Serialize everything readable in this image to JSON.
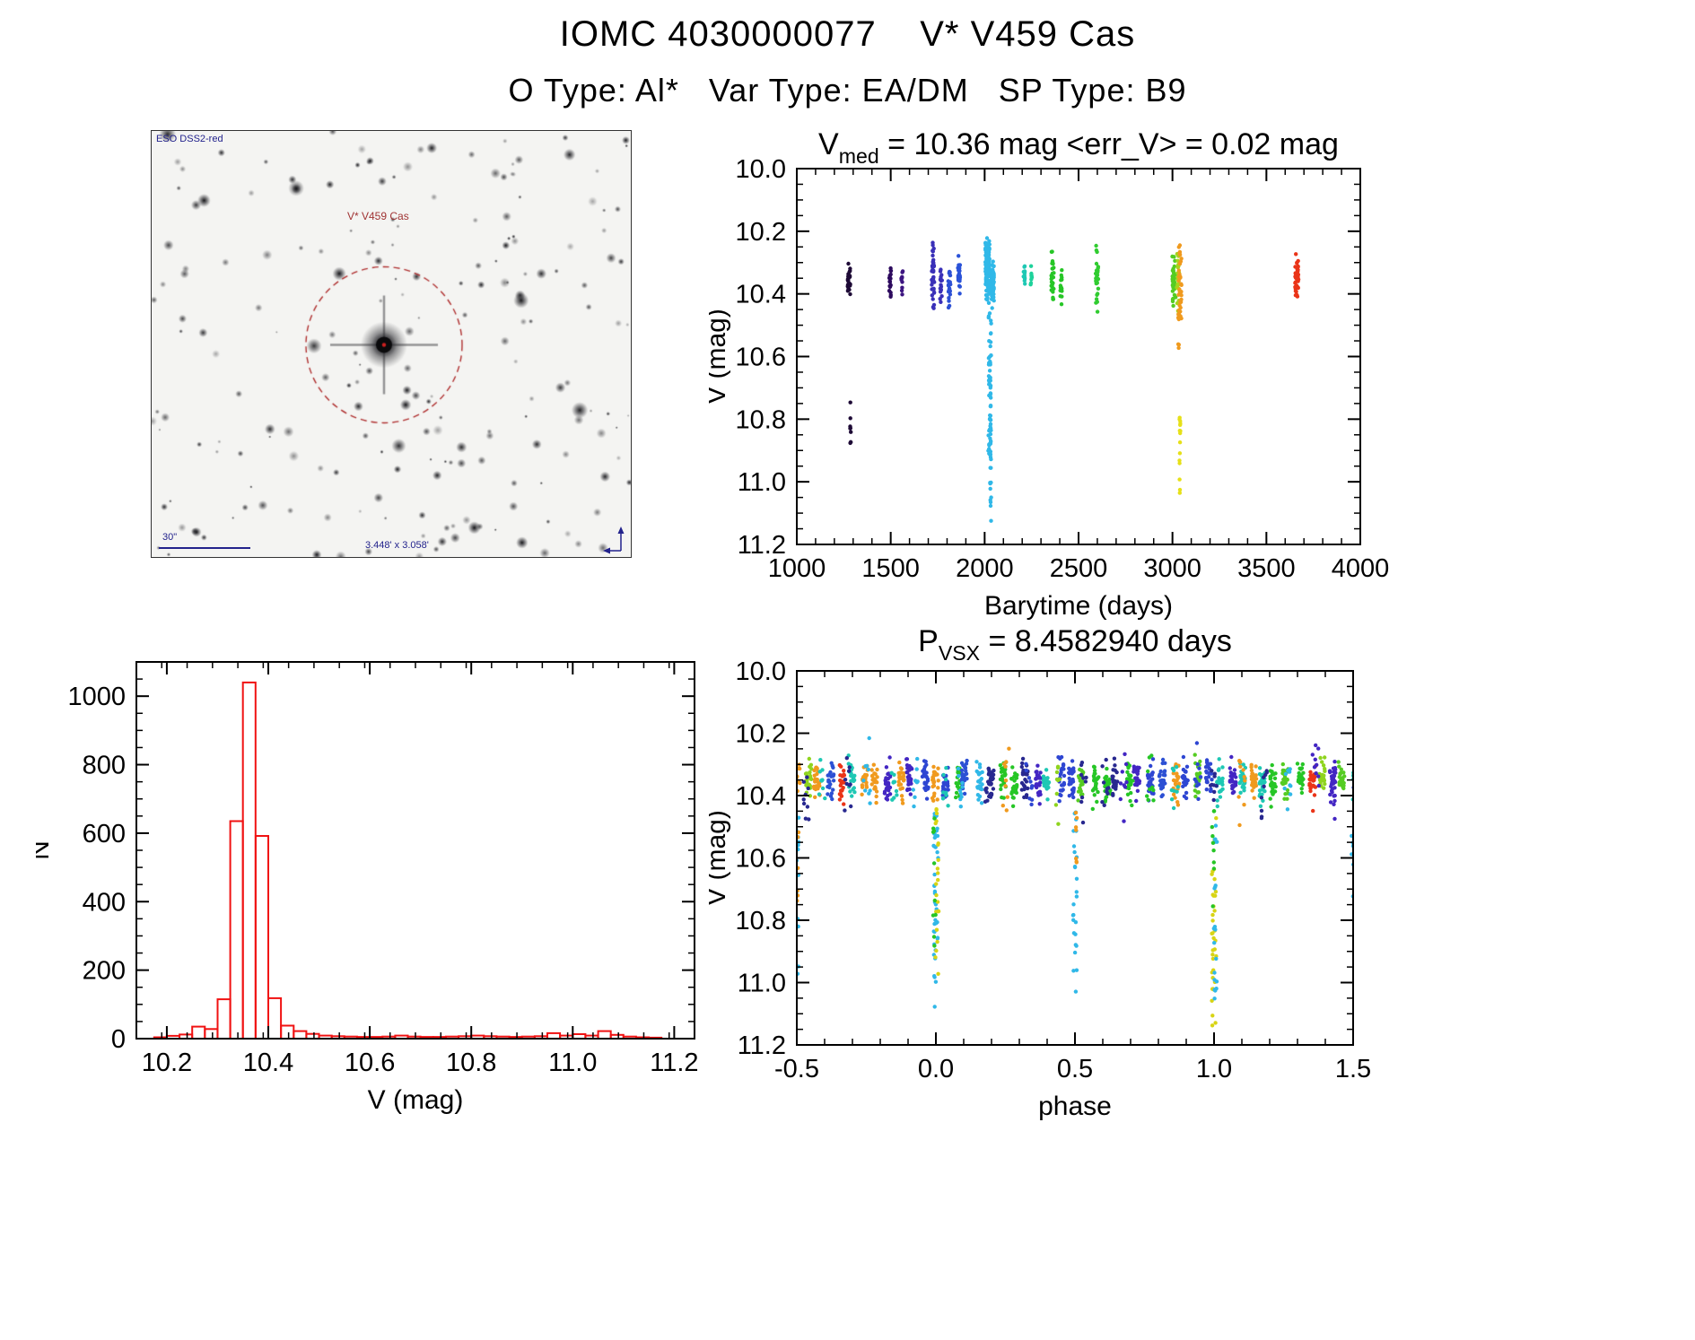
{
  "page": {
    "title": "IOMC 4030000077    V* V459 Cas",
    "subtitle": "O Type: Al*   Var Type: EA/DM   SP Type: B9",
    "background": "#ffffff"
  },
  "finder": {
    "survey_label": "ESO DSS2-red",
    "star_label": "V* V459 Cas",
    "scale_label": "30\"",
    "fov_label": "3.448' x 3.058'",
    "annotation_blue": "#22228c",
    "annotation_red": "#a03434",
    "circle_color": "#b03030"
  },
  "chart_data": [
    {
      "id": "lightcurve",
      "type": "scatter",
      "title_parts": [
        {
          "t": "V"
        },
        {
          "t": "med",
          "sub": true
        },
        {
          "t": " = 10.36 mag <err_V> = 0.02 mag"
        }
      ],
      "xlabel": "Barytime (days)",
      "ylabel": "V (mag)",
      "xlim": [
        1000,
        4000
      ],
      "ylim": [
        10.0,
        11.2
      ],
      "y_axis_note": "magnitude axis inverted, 10.0 at top",
      "xticks": [
        1000,
        1500,
        2000,
        2500,
        3000,
        3500,
        4000
      ],
      "xtick_labels": [
        "1000",
        "1500",
        "2000",
        "2500",
        "3000",
        "3500",
        "4000"
      ],
      "yticks": [
        10.0,
        10.2,
        10.4,
        10.6,
        10.8,
        11.0,
        11.2
      ],
      "ytick_labels": [
        "10.0",
        "10.2",
        "10.4",
        "10.6",
        "10.8",
        "11.0",
        "11.2"
      ],
      "xminor": 100,
      "yminor": 0.05,
      "seed": 7,
      "clusters": [
        {
          "kind": "gauss",
          "x": 1278,
          "dx": 7,
          "y": 10.352,
          "dy": 0.02,
          "n": 28,
          "color": "#1e0a36"
        },
        {
          "kind": "column",
          "x": 1286,
          "dx": 2,
          "y1": 10.7,
          "y2": 10.88,
          "n": 9,
          "color": "#1e0a36"
        },
        {
          "kind": "gauss",
          "x": 1497,
          "dx": 5,
          "y": 10.36,
          "dy": 0.038,
          "n": 20,
          "color": "#2d0a5e"
        },
        {
          "kind": "gauss",
          "x": 1560,
          "dx": 4,
          "y": 10.35,
          "dy": 0.024,
          "n": 10,
          "color": "#3c1480"
        },
        {
          "kind": "gauss",
          "x": 1725,
          "dx": 7,
          "y": 10.335,
          "dy": 0.045,
          "n": 42,
          "color": "#3a30b8"
        },
        {
          "kind": "gauss",
          "x": 1768,
          "dx": 5,
          "y": 10.37,
          "dy": 0.028,
          "n": 18,
          "color": "#3a30b8"
        },
        {
          "kind": "gauss",
          "x": 1812,
          "dx": 6,
          "y": 10.37,
          "dy": 0.032,
          "n": 26,
          "color": "#2c50d4"
        },
        {
          "kind": "gauss",
          "x": 1864,
          "dx": 6,
          "y": 10.35,
          "dy": 0.028,
          "n": 24,
          "color": "#2a52d8"
        },
        {
          "kind": "gauss",
          "x": 2015,
          "dx": 11,
          "y": 10.33,
          "dy": 0.05,
          "n": 120,
          "color": "#30b8e8"
        },
        {
          "kind": "gauss",
          "x": 2042,
          "dx": 8,
          "y": 10.37,
          "dy": 0.038,
          "n": 55,
          "color": "#30b8e8"
        },
        {
          "kind": "column",
          "x": 2031,
          "dx": 4,
          "y1": 10.46,
          "y2": 11.16,
          "n": 65,
          "color": "#30b8e8"
        },
        {
          "kind": "column",
          "x": 2022,
          "dx": 3,
          "y1": 10.46,
          "y2": 10.95,
          "n": 18,
          "color": "#30b8e8"
        },
        {
          "kind": "gauss",
          "x": 2212,
          "dx": 5,
          "y": 10.34,
          "dy": 0.02,
          "n": 13,
          "color": "#1ec8b4"
        },
        {
          "kind": "gauss",
          "x": 2248,
          "dx": 4,
          "y": 10.345,
          "dy": 0.018,
          "n": 9,
          "color": "#1ed29b"
        },
        {
          "kind": "gauss",
          "x": 2362,
          "dx": 7,
          "y": 10.35,
          "dy": 0.04,
          "n": 28,
          "color": "#26c626"
        },
        {
          "kind": "gauss",
          "x": 2408,
          "dx": 5,
          "y": 10.37,
          "dy": 0.032,
          "n": 15,
          "color": "#26c626"
        },
        {
          "kind": "gauss",
          "x": 2598,
          "dx": 7,
          "y": 10.36,
          "dy": 0.05,
          "n": 30,
          "color": "#30cc30"
        },
        {
          "kind": "gauss",
          "x": 3008,
          "dx": 9,
          "y": 10.35,
          "dy": 0.04,
          "n": 40,
          "color": "#55cc22"
        },
        {
          "kind": "gauss",
          "x": 3030,
          "dx": 7,
          "y": 10.36,
          "dy": 0.045,
          "n": 25,
          "color": "#a6d41a"
        },
        {
          "kind": "gauss",
          "x": 3040,
          "dx": 8,
          "y": 10.38,
          "dy": 0.055,
          "n": 35,
          "color": "#f09a1e"
        },
        {
          "kind": "column",
          "x": 3034,
          "dx": 4,
          "y1": 10.46,
          "y2": 10.58,
          "n": 8,
          "color": "#f09a1e"
        },
        {
          "kind": "column",
          "x": 3040,
          "dx": 3,
          "y1": 10.78,
          "y2": 11.07,
          "n": 15,
          "color": "#e6e018"
        },
        {
          "kind": "gauss",
          "x": 3662,
          "dx": 9,
          "y": 10.35,
          "dy": 0.032,
          "n": 42,
          "color": "#ea3418"
        }
      ]
    },
    {
      "id": "histogram",
      "type": "bar",
      "color": "#f01212",
      "xlabel": "V (mag)",
      "ylabel": "N",
      "xlim": [
        10.14,
        11.24
      ],
      "ylim": [
        1100,
        0
      ],
      "xticks": [
        10.2,
        10.4,
        10.6,
        10.8,
        11.0,
        11.2
      ],
      "xtick_labels": [
        "10.2",
        "10.4",
        "10.6",
        "10.8",
        "11.0",
        "11.2"
      ],
      "yticks": [
        0,
        200,
        400,
        600,
        800,
        1000
      ],
      "ytick_labels": [
        "0",
        "200",
        "400",
        "600",
        "800",
        "1000"
      ],
      "xminor": 0.05,
      "yminor": 50,
      "bin_width": 0.025,
      "bins": [
        [
          10.175,
          4
        ],
        [
          10.2,
          8
        ],
        [
          10.225,
          12
        ],
        [
          10.25,
          35
        ],
        [
          10.275,
          28
        ],
        [
          10.3,
          115
        ],
        [
          10.325,
          635
        ],
        [
          10.35,
          1040
        ],
        [
          10.375,
          592
        ],
        [
          10.4,
          118
        ],
        [
          10.425,
          38
        ],
        [
          10.45,
          22
        ],
        [
          10.475,
          14
        ],
        [
          10.5,
          9
        ],
        [
          10.525,
          7
        ],
        [
          10.55,
          6
        ],
        [
          10.575,
          5
        ],
        [
          10.6,
          5
        ],
        [
          10.625,
          6
        ],
        [
          10.65,
          9
        ],
        [
          10.675,
          6
        ],
        [
          10.7,
          5
        ],
        [
          10.725,
          5
        ],
        [
          10.75,
          6
        ],
        [
          10.775,
          7
        ],
        [
          10.8,
          9
        ],
        [
          10.825,
          7
        ],
        [
          10.85,
          6
        ],
        [
          10.875,
          5
        ],
        [
          10.9,
          6
        ],
        [
          10.925,
          7
        ],
        [
          10.95,
          16
        ],
        [
          10.975,
          9
        ],
        [
          11.0,
          13
        ],
        [
          11.025,
          9
        ],
        [
          11.05,
          22
        ],
        [
          11.075,
          11
        ],
        [
          11.1,
          6
        ],
        [
          11.125,
          4
        ],
        [
          11.15,
          3
        ]
      ]
    },
    {
      "id": "phase",
      "type": "scatter",
      "title_parts": [
        {
          "t": "P"
        },
        {
          "t": "VSX",
          "sub": true
        },
        {
          "t": " = 8.4582940 days"
        }
      ],
      "xlabel": "phase",
      "ylabel": "V (mag)",
      "xlim": [
        -0.5,
        1.5
      ],
      "ylim": [
        10.0,
        11.2
      ],
      "y_axis_note": "magnitude axis inverted, 10.0 at top",
      "xticks": [
        -0.5,
        0.0,
        0.5,
        1.0,
        1.5
      ],
      "xtick_labels": [
        "-0.5",
        "0.0",
        "0.5",
        "1.0",
        "1.5"
      ],
      "yticks": [
        10.0,
        10.2,
        10.4,
        10.6,
        10.8,
        11.0,
        11.2
      ],
      "ytick_labels": [
        "10.0",
        "10.2",
        "10.4",
        "10.6",
        "10.8",
        "11.0",
        "11.2"
      ],
      "xminor": 0.1,
      "yminor": 0.05,
      "seed": 11,
      "bands": [
        {
          "start": -0.5,
          "end": 1.5,
          "step": 0.041,
          "jitter": 0.012,
          "dx": 0.011,
          "y": 10.352,
          "ycenter_jitter": 0.012,
          "dy": 0.03,
          "n": 24,
          "colors": [
            "#28288f",
            "#2e46d2",
            "#30b8e8",
            "#1ec8b4",
            "#26c626",
            "#8fd41e",
            "#f09a1e",
            "#ea3418",
            "#4326c3",
            "#2c50d4",
            "#55cc22"
          ]
        },
        {
          "start": -0.48,
          "end": 1.5,
          "step": 0.083,
          "jitter": 0.02,
          "dx": 0.012,
          "y": 10.36,
          "ycenter_jitter": 0.02,
          "dy": 0.05,
          "n": 9,
          "colors": [
            "#28288f",
            "#2e46d2",
            "#30b8e8",
            "#1ec8b4",
            "#26c626",
            "#8fd41e",
            "#f09a1e",
            "#4326c3"
          ]
        }
      ],
      "clusters": [
        {
          "kind": "column",
          "x": -0.5,
          "dx": 0.007,
          "y1": 10.45,
          "y2": 11.05,
          "n": 20,
          "color": "#30b8e8"
        },
        {
          "kind": "column",
          "x": -0.497,
          "dx": 0.004,
          "y1": 10.45,
          "y2": 10.75,
          "n": 6,
          "color": "#f09a1e"
        },
        {
          "kind": "column",
          "x": 0.0,
          "dx": 0.008,
          "y1": 10.44,
          "y2": 11.16,
          "n": 40,
          "color": "#30b8e8"
        },
        {
          "kind": "column",
          "x": 0.004,
          "dx": 0.006,
          "y1": 10.44,
          "y2": 11.06,
          "n": 22,
          "color": "#d8d414"
        },
        {
          "kind": "column",
          "x": -0.005,
          "dx": 0.005,
          "y1": 10.44,
          "y2": 10.9,
          "n": 10,
          "color": "#26c626"
        },
        {
          "kind": "column",
          "x": 0.5,
          "dx": 0.007,
          "y1": 10.44,
          "y2": 11.05,
          "n": 26,
          "color": "#30b8e8"
        },
        {
          "kind": "column",
          "x": 0.505,
          "dx": 0.005,
          "y1": 10.44,
          "y2": 10.62,
          "n": 7,
          "color": "#f09a1e"
        },
        {
          "kind": "column",
          "x": 1.0,
          "dx": 0.008,
          "y1": 10.44,
          "y2": 11.16,
          "n": 35,
          "color": "#d8d414"
        },
        {
          "kind": "column",
          "x": 1.005,
          "dx": 0.006,
          "y1": 10.44,
          "y2": 11.1,
          "n": 20,
          "color": "#30b8e8"
        },
        {
          "kind": "column",
          "x": 0.996,
          "dx": 0.005,
          "y1": 10.44,
          "y2": 10.85,
          "n": 9,
          "color": "#26c626"
        },
        {
          "kind": "column",
          "x": 1.5,
          "dx": 0.006,
          "y1": 10.45,
          "y2": 10.85,
          "n": 9,
          "color": "#30b8e8"
        }
      ]
    }
  ]
}
